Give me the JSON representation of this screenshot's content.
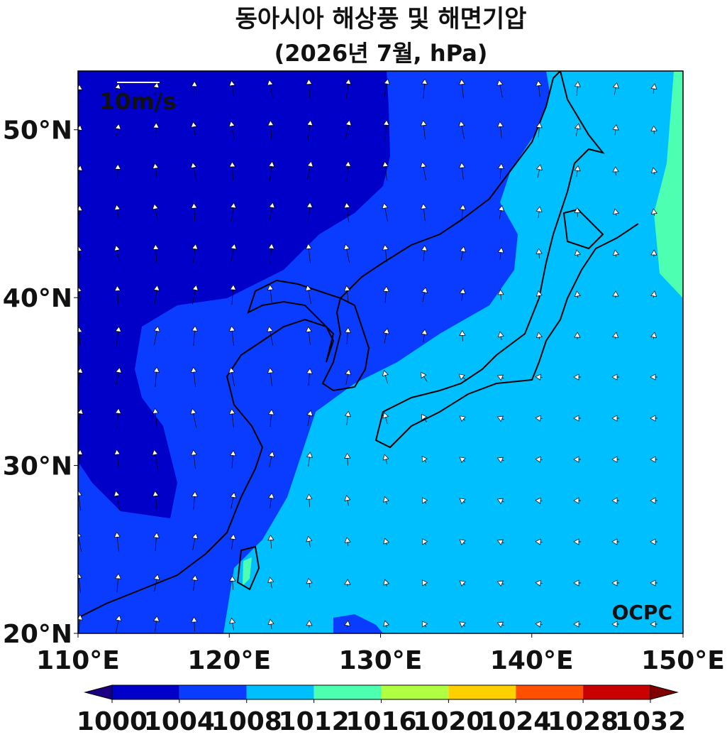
{
  "title": "동아시아 해상풍 및 해면기압",
  "subtitle": "(2026년 7월, hPa)",
  "reference_arrow": "10m/s",
  "logo": "OCPC",
  "map": {
    "lonlim": [
      110,
      150
    ],
    "latlim": [
      20,
      53.5
    ],
    "lon_ticks": [
      {
        "value": 110,
        "label": "110°E"
      },
      {
        "value": 120,
        "label": "120°E"
      },
      {
        "value": 130,
        "label": "130°E"
      },
      {
        "value": 140,
        "label": "140°E"
      },
      {
        "value": 150,
        "label": "150°E"
      }
    ],
    "lat_ticks": [
      {
        "value": 20,
        "label": "20°N"
      },
      {
        "value": 30,
        "label": "30°N"
      },
      {
        "value": 40,
        "label": "40°N"
      },
      {
        "value": 50,
        "label": "50°N"
      }
    ]
  },
  "colorbar": {
    "levels": [
      1000,
      1004,
      1008,
      1012,
      1016,
      1020,
      1024,
      1028,
      1032
    ],
    "colors": [
      "#0000c8",
      "#0a3cff",
      "#00bfff",
      "#4dffb0",
      "#b0ff40",
      "#ffd000",
      "#ff5000",
      "#c80000"
    ],
    "under_color": "#1a0080",
    "over_color": "#800000"
  }
}
